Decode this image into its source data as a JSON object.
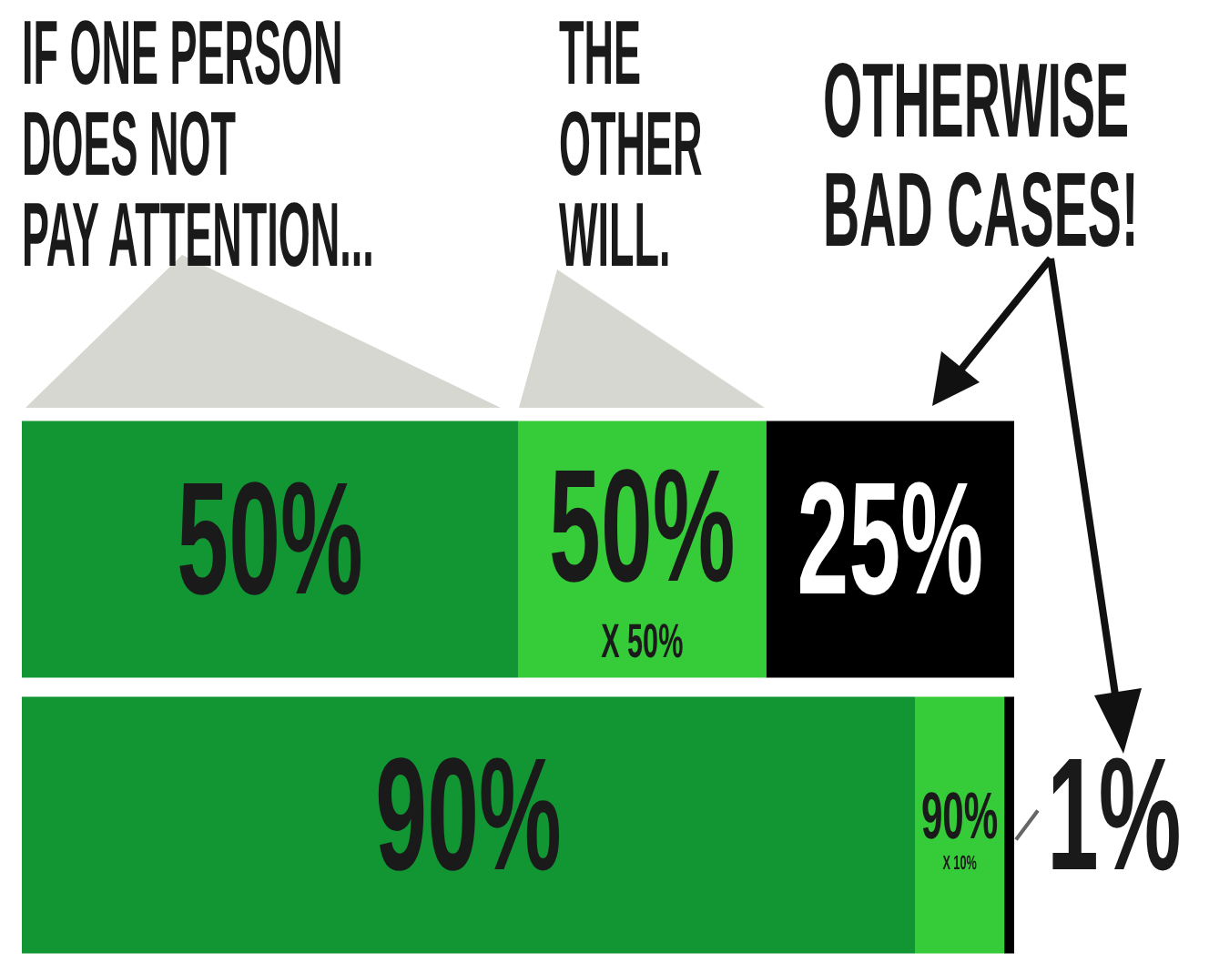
{
  "chart_data": {
    "type": "bar",
    "orientation": "horizontal",
    "stacked": true,
    "categories": [
      null,
      null
    ],
    "xlim": [
      0,
      100
    ],
    "tick_labels": false,
    "legend": false,
    "series": [
      {
        "color": "#129634",
        "values": [
          50,
          90
        ],
        "value_labels": [
          "50%",
          "90%"
        ]
      },
      {
        "color": "#36cb38",
        "values": [
          25,
          9
        ]
      },
      {
        "color": "#000000",
        "values": [
          25,
          1
        ],
        "value_labels": [
          "25%",
          "1%"
        ]
      }
    ],
    "annotations": [
      "IF ONE PERSON\nDOES NOT\nPAY ATTENTION...",
      "THE\nOTHER\nWILL.",
      "OTHERWISE\nBAD CASES!",
      "50%\nX 50%",
      "90%\nX 10%"
    ]
  }
}
